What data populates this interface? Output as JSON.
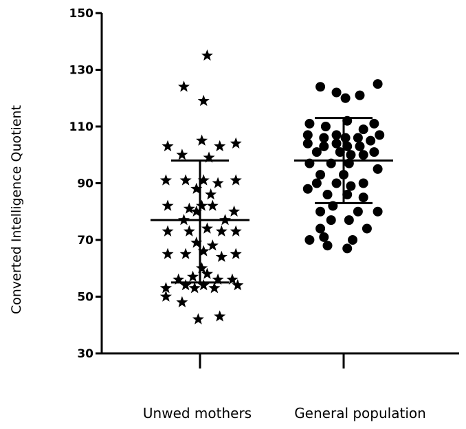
{
  "chart_data": {
    "type": "scatter",
    "title": "",
    "xlabel": "",
    "ylabel": "Converted Intelligence Quotient",
    "ylim": [
      30,
      150
    ],
    "yticks": [
      30,
      50,
      70,
      90,
      110,
      130,
      150
    ],
    "categories": [
      "Unwed mothers",
      "General population"
    ],
    "grid": false,
    "legend": "none",
    "series": [
      {
        "category": "Unwed mothers",
        "marker": "star",
        "color": "#000000",
        "summary": {
          "mean": 77,
          "upper": 98,
          "lower": 55
        },
        "points": [
          [
            0.2,
            135
          ],
          [
            -0.45,
            124
          ],
          [
            0.1,
            119
          ],
          [
            -0.9,
            103
          ],
          [
            0.05,
            105
          ],
          [
            0.55,
            103
          ],
          [
            1.0,
            104
          ],
          [
            -0.5,
            100
          ],
          [
            0.25,
            99
          ],
          [
            -0.95,
            91
          ],
          [
            -0.4,
            91
          ],
          [
            0.1,
            91
          ],
          [
            0.5,
            90
          ],
          [
            1.0,
            91
          ],
          [
            -0.1,
            88
          ],
          [
            0.3,
            86
          ],
          [
            -0.9,
            82
          ],
          [
            -0.3,
            81
          ],
          [
            0.05,
            82
          ],
          [
            0.35,
            82
          ],
          [
            0.95,
            80
          ],
          [
            -0.1,
            80
          ],
          [
            -0.45,
            77
          ],
          [
            0.7,
            77
          ],
          [
            -0.9,
            73
          ],
          [
            -0.3,
            73
          ],
          [
            0.2,
            74
          ],
          [
            0.6,
            73
          ],
          [
            1.0,
            73
          ],
          [
            -0.1,
            69
          ],
          [
            0.35,
            68
          ],
          [
            0.1,
            66
          ],
          [
            -0.9,
            65
          ],
          [
            -0.4,
            65
          ],
          [
            0.6,
            64
          ],
          [
            1.0,
            65
          ],
          [
            0.05,
            60
          ],
          [
            0.2,
            58
          ],
          [
            -0.2,
            57
          ],
          [
            -0.6,
            56
          ],
          [
            0.5,
            56
          ],
          [
            0.9,
            56
          ],
          [
            -0.4,
            54
          ],
          [
            0.1,
            54
          ],
          [
            -0.15,
            53
          ],
          [
            -0.95,
            53
          ],
          [
            0.4,
            53
          ],
          [
            1.05,
            54
          ],
          [
            -0.95,
            50
          ],
          [
            -0.5,
            48
          ],
          [
            0.55,
            43
          ],
          [
            -0.05,
            42
          ]
        ]
      },
      {
        "category": "General population",
        "marker": "circle",
        "color": "#000000",
        "summary": {
          "mean": 98,
          "upper": 113,
          "lower": 83
        },
        "points": [
          [
            -0.65,
            124
          ],
          [
            0.95,
            125
          ],
          [
            -0.2,
            122
          ],
          [
            0.05,
            120
          ],
          [
            0.45,
            121
          ],
          [
            0.1,
            112
          ],
          [
            -0.95,
            111
          ],
          [
            -0.5,
            110
          ],
          [
            0.55,
            109
          ],
          [
            0.85,
            111
          ],
          [
            -1.0,
            107
          ],
          [
            -0.55,
            106
          ],
          [
            -0.2,
            107
          ],
          [
            0.05,
            106
          ],
          [
            0.4,
            106
          ],
          [
            1.0,
            107
          ],
          [
            -1.0,
            104
          ],
          [
            -0.55,
            103
          ],
          [
            -0.2,
            104
          ],
          [
            0.1,
            103
          ],
          [
            0.45,
            103
          ],
          [
            0.75,
            105
          ],
          [
            -0.75,
            101
          ],
          [
            -0.1,
            101
          ],
          [
            0.2,
            100
          ],
          [
            0.55,
            100
          ],
          [
            0.85,
            101
          ],
          [
            -0.95,
            97
          ],
          [
            -0.35,
            97
          ],
          [
            0.15,
            97
          ],
          [
            -0.65,
            93
          ],
          [
            0.0,
            93
          ],
          [
            0.95,
            95
          ],
          [
            -0.75,
            90
          ],
          [
            -0.2,
            90
          ],
          [
            0.2,
            89
          ],
          [
            0.55,
            90
          ],
          [
            -1.0,
            88
          ],
          [
            -0.45,
            86
          ],
          [
            0.1,
            86
          ],
          [
            0.55,
            85
          ],
          [
            -0.3,
            82
          ],
          [
            -0.65,
            80
          ],
          [
            0.4,
            80
          ],
          [
            0.95,
            80
          ],
          [
            -0.35,
            77
          ],
          [
            0.15,
            77
          ],
          [
            -0.65,
            74
          ],
          [
            0.65,
            74
          ],
          [
            -0.95,
            70
          ],
          [
            -0.55,
            71
          ],
          [
            0.25,
            70
          ],
          [
            -0.45,
            68
          ],
          [
            0.1,
            67
          ]
        ]
      }
    ]
  }
}
